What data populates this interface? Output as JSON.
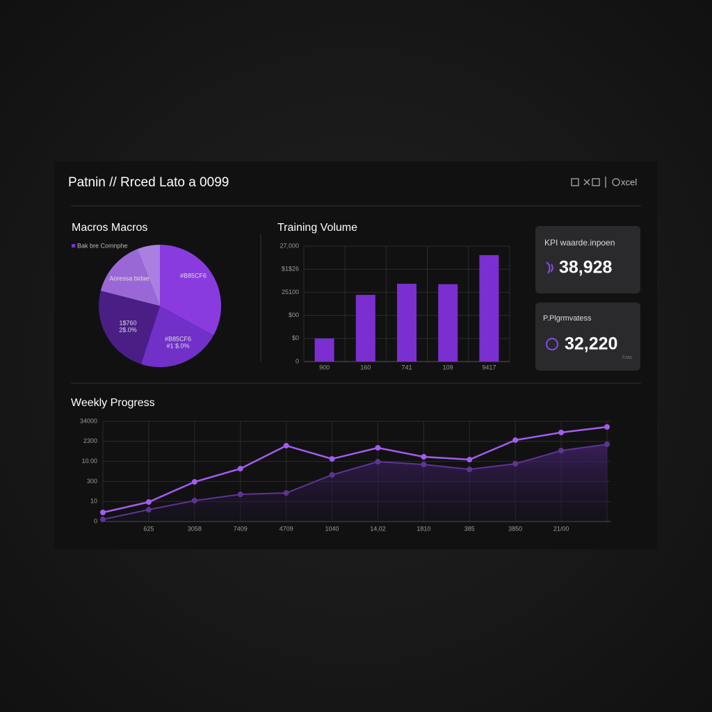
{
  "header": {
    "title": "Patnin // Rrced Lato a 0099",
    "action": "xcel"
  },
  "chart_data": [
    {
      "type": "pie",
      "title": "Macros Macros",
      "legend_text": "Bak bre Comnphe",
      "categories": [
        [
          "#B85CF6"
        ],
        [
          "#B85CF6",
          "#1 $.0%"
        ],
        [
          "1$760",
          "2$.0%"
        ],
        [
          "Aoressa bidae"
        ],
        null
      ],
      "values": [
        33,
        22,
        24,
        15,
        6
      ],
      "colors": [
        "#8a3be0",
        "#7130c8",
        "#4a1e85",
        "#9a68d6",
        "#a980e2"
      ]
    },
    {
      "type": "bar",
      "title": "Training Volume",
      "categories": [
        "900",
        "160",
        "741",
        "109",
        "9417"
      ],
      "values": [
        5400,
        15600,
        18200,
        18100,
        24900
      ],
      "color": "#7b2fd0",
      "ylim": [
        0,
        27000
      ],
      "yticks": [
        0,
        {
          "value": 5400,
          "label": "$0"
        },
        {
          "value": 10800,
          "label": "$00"
        },
        {
          "value": 16200,
          "label": "25100"
        },
        {
          "value": 21600,
          "label": "$1$26"
        },
        {
          "value": 27000,
          "label": "27,000"
        }
      ],
      "grid": true
    },
    {
      "type": "line",
      "title": "Weekly Progress",
      "categories": [
        null,
        "625",
        "3058",
        "7409",
        "4709",
        "1040",
        "14,02",
        "1810",
        "385",
        "3850",
        "21/00",
        null
      ],
      "series": [
        {
          "color": "#a45cf0",
          "values": [
            307,
            661,
            1346,
            1794,
            2574,
            2125,
            2503,
            2196,
            2101,
            2763,
            3022,
            3211
          ]
        },
        {
          "color": "#5e3494",
          "values": [
            71,
            401,
            708,
            921,
            968,
            1582,
            2031,
            1936,
            1771,
            1960,
            2408,
            2621
          ]
        }
      ],
      "ylim": [
        0,
        3400
      ],
      "yticks": [
        0,
        {
          "value": 680,
          "label": "10"
        },
        {
          "value": 1360,
          "label": "300"
        },
        {
          "value": 2040,
          "label": "10.00"
        },
        {
          "value": 2720,
          "label": "2300"
        },
        {
          "value": 3400,
          "label": "34000"
        }
      ],
      "grid": true
    }
  ],
  "kpis": [
    {
      "title": "KPI waarde.inpoen",
      "value": "38,928"
    },
    {
      "title": "P.Plgrmvatess",
      "value": "32,220",
      "note": "ll.tac"
    }
  ]
}
